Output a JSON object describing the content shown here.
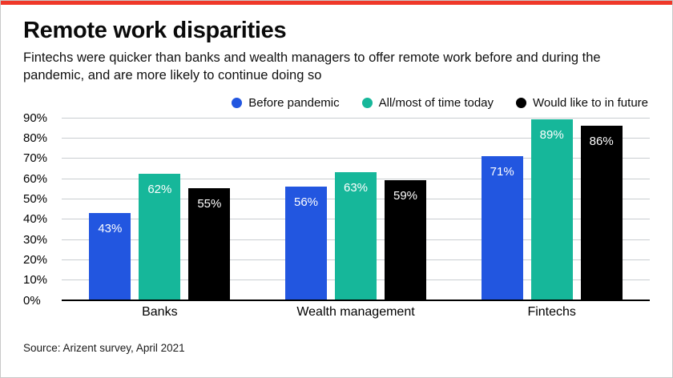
{
  "accent_color": "#ef3829",
  "header": {
    "title": "Remote work disparities",
    "subtitle": "Fintechs were quicker than banks and wealth managers to offer remote work before and during the pandemic, and are more likely to continue doing so"
  },
  "chart_data": {
    "type": "bar",
    "categories": [
      "Banks",
      "Wealth management",
      "Fintechs"
    ],
    "series": [
      {
        "name": "Before pandemic",
        "color": "#2256e0",
        "values": [
          43,
          56,
          71
        ]
      },
      {
        "name": "All/most of time today",
        "color": "#16b79a",
        "values": [
          62,
          63,
          89
        ]
      },
      {
        "name": "Would like to in future",
        "color": "#000000",
        "values": [
          55,
          59,
          86
        ]
      }
    ],
    "ylim": [
      0,
      90
    ],
    "ytick_step": 10,
    "ytick_suffix": "%",
    "value_suffix": "%",
    "grid": true,
    "legend_position": "top"
  },
  "source": "Source: Arizent survey, April 2021"
}
